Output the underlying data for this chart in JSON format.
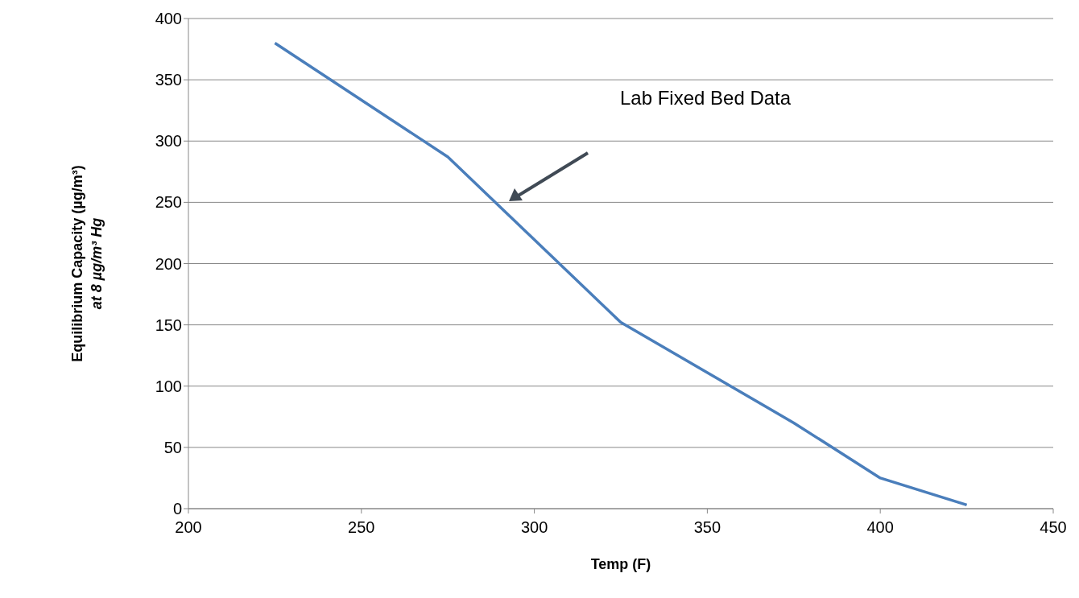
{
  "chart_data": {
    "type": "line",
    "xlabel": "Temp (F)",
    "ylabel": "Equilibrium Capacity (µg/m³)\nat 8 µg/m³ Hg",
    "x": [
      225,
      275,
      325,
      375,
      400,
      425
    ],
    "series": [
      {
        "color": "#4a7ebb",
        "values": [
          380,
          287,
          152,
          70,
          25,
          3
        ]
      }
    ],
    "xlim": [
      200,
      450
    ],
    "xticks": [
      200,
      250,
      300,
      350,
      400,
      450
    ],
    "ylim": [
      0,
      400
    ],
    "yticks": [
      0,
      50,
      100,
      150,
      200,
      250,
      300,
      350,
      400
    ],
    "grid": "y",
    "marker": "none",
    "line_style": "solid",
    "annotations": [
      "Lab Fixed Bed Data"
    ]
  }
}
